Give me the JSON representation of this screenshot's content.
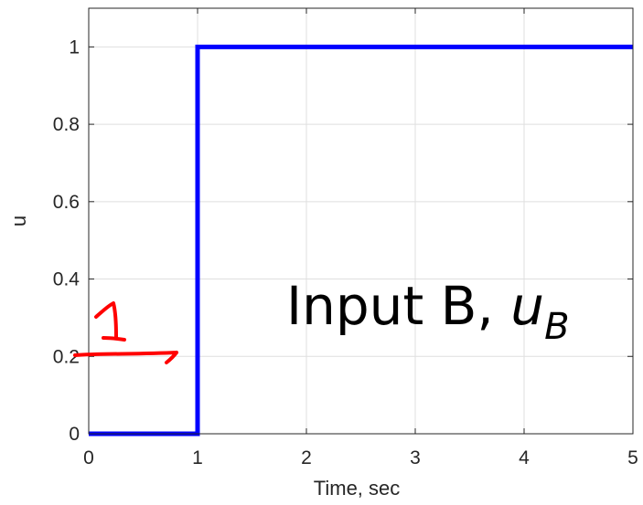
{
  "chart_data": {
    "type": "line",
    "xlabel": "Time, sec",
    "ylabel": "u",
    "xlim": [
      0,
      5
    ],
    "ylim": [
      0,
      1.1
    ],
    "grid": true,
    "x_ticks": [
      0,
      1,
      2,
      3,
      4,
      5
    ],
    "y_ticks": [
      0,
      0.2,
      0.4,
      0.6,
      0.8,
      1
    ],
    "x_tick_labels": [
      "0",
      "1",
      "2",
      "3",
      "4",
      "5"
    ],
    "y_tick_labels": [
      "0",
      "0.2",
      "0.4",
      "0.6",
      "0.8",
      "1"
    ],
    "series": [
      {
        "x": [
          0,
          1,
          1,
          5
        ],
        "y": [
          0,
          0,
          1,
          1
        ],
        "color": "#0000ff"
      }
    ],
    "annotation": {
      "text": "Input B, ",
      "var": "u",
      "sub": "B"
    },
    "handwritten": {
      "text": "1",
      "color": "#ff0000",
      "arrow_points_to_y": 0.2
    }
  }
}
